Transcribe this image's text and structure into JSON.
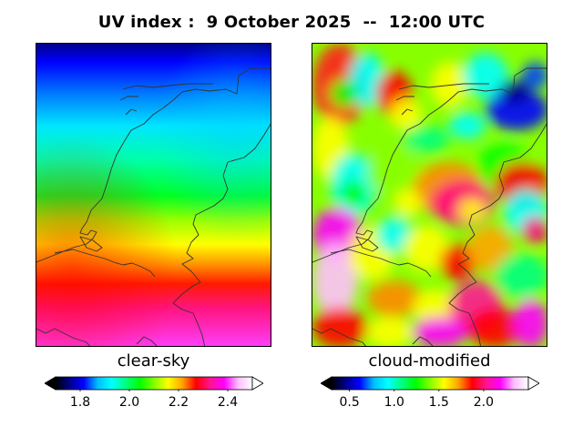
{
  "title": "UV index :  9 October 2025  --  12:00 UTC",
  "panels": [
    {
      "label": "clear-sky",
      "colorbar": {
        "min": 1.7,
        "max": 2.5,
        "ticks": [
          "1.8",
          "2.0",
          "2.2",
          "2.4"
        ],
        "tick_values": [
          1.8,
          2.0,
          2.2,
          2.4
        ]
      }
    },
    {
      "label": "cloud-modified",
      "colorbar": {
        "min": 0.3,
        "max": 2.5,
        "ticks": [
          "0.5",
          "1.0",
          "1.5",
          "2.0"
        ],
        "tick_values": [
          0.5,
          1.0,
          1.5,
          2.0
        ]
      }
    }
  ],
  "colors": {
    "scale": [
      "#000000",
      "#00008b",
      "#0000ff",
      "#00bfff",
      "#00ffff",
      "#00ff80",
      "#00ff00",
      "#80ff00",
      "#ffff00",
      "#ffa500",
      "#ff0000",
      "#ff1493",
      "#ff00ff",
      "#ffc0ff",
      "#ffffff"
    ],
    "coastline": "#333333"
  }
}
